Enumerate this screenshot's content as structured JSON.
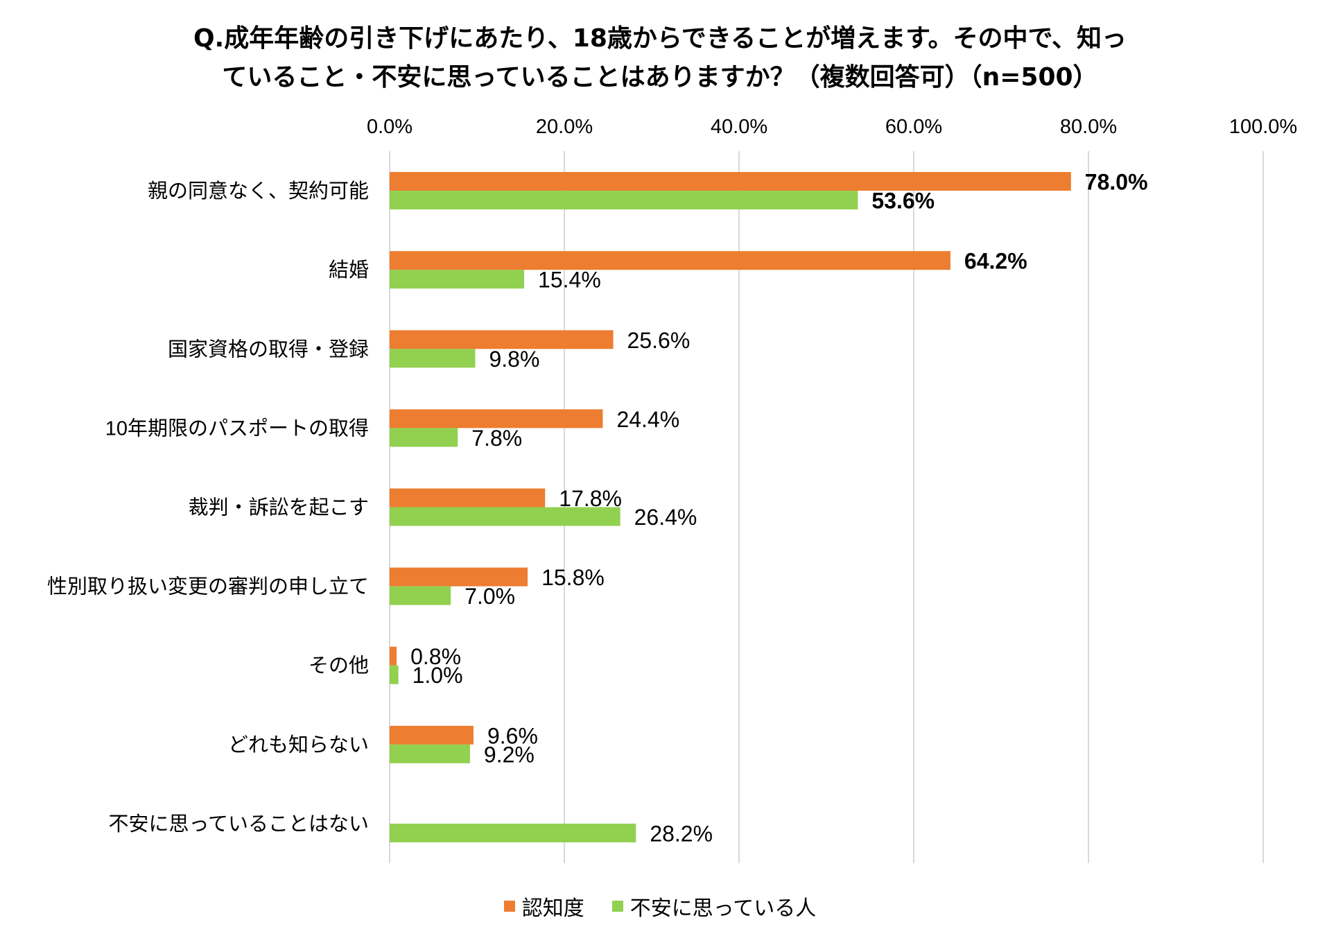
{
  "chart_data": {
    "type": "bar",
    "orientation": "horizontal",
    "title_lines": [
      "Q.成年年齢の引き下げにあたり、18歳からできることが増えます。その中で、知っ",
      "ていること・不安に思っていることはありますか？（複数回答可）（n=500）"
    ],
    "categories": [
      "親の同意なく、契約可能",
      "結婚",
      "国家資格の取得・登録",
      "10年期限のパスポートの取得",
      "裁判・訴訟を起こす",
      "性別取り扱い変更の審判の申し立て",
      "その他",
      "どれも知らない",
      "不安に思っていることはない"
    ],
    "series": [
      {
        "name": "認知度",
        "color": "#ED7D31",
        "values": [
          78.0,
          64.2,
          25.6,
          24.4,
          17.8,
          15.8,
          0.8,
          9.6,
          null
        ],
        "labels": [
          "78.0%",
          "64.2%",
          "25.6%",
          "24.4%",
          "17.8%",
          "15.8%",
          "0.8%",
          "9.6%",
          ""
        ],
        "bold": [
          true,
          true,
          false,
          false,
          false,
          false,
          false,
          false,
          false
        ]
      },
      {
        "name": "不安に思っている人",
        "color": "#92D050",
        "values": [
          53.6,
          15.4,
          9.8,
          7.8,
          26.4,
          7.0,
          1.0,
          9.2,
          28.2
        ],
        "labels": [
          "53.6%",
          "15.4%",
          "9.8%",
          "7.8%",
          "26.4%",
          "7.0%",
          "1.0%",
          "9.2%",
          "28.2%"
        ],
        "bold": [
          true,
          false,
          false,
          false,
          false,
          false,
          false,
          false,
          false
        ]
      }
    ],
    "xlim": [
      0,
      100
    ],
    "xticks": [
      "0.0%",
      "20.0%",
      "40.0%",
      "60.0%",
      "80.0%",
      "100.0%"
    ],
    "xaxis_position": "top",
    "grid": true,
    "legend_position": "bottom"
  }
}
